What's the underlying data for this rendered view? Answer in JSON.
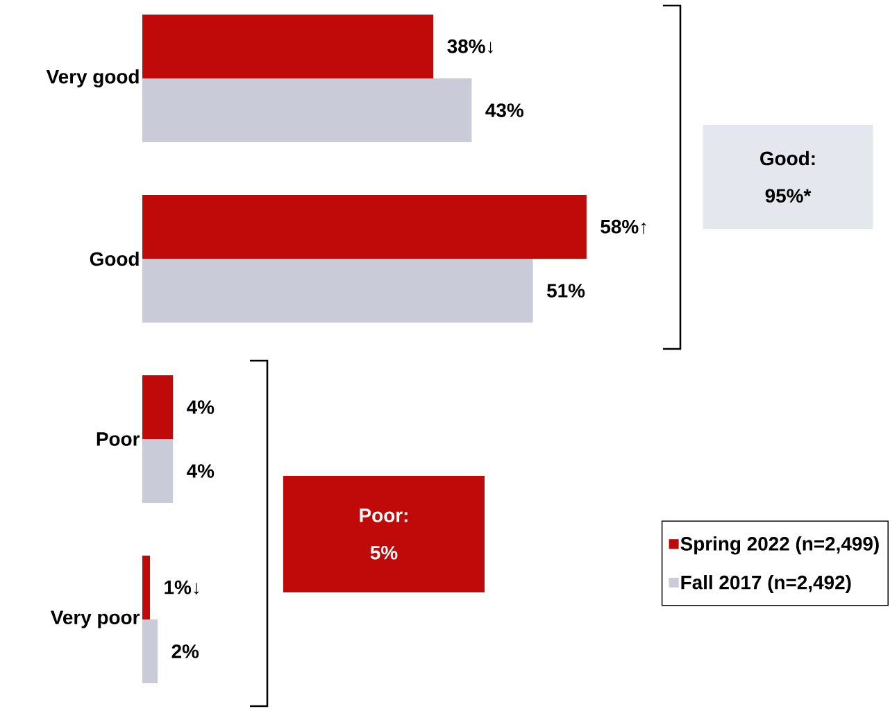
{
  "chart_data": {
    "type": "bar",
    "orientation": "horizontal",
    "categories": [
      "Very good",
      "Good",
      "Poor",
      "Very poor"
    ],
    "series": [
      {
        "name": "Spring 2022 (n=2,499)",
        "color": "#c00a0a",
        "values": [
          38,
          58,
          4,
          1
        ],
        "value_labels": [
          "38%↓",
          "58%↑",
          "4%",
          "1%↓"
        ]
      },
      {
        "name": "Fall 2017 (n=2,492)",
        "color": "#c9ccd8",
        "values": [
          43,
          51,
          4,
          2
        ],
        "value_labels": [
          "43%",
          "51%",
          "4%",
          "2%"
        ]
      }
    ],
    "annotations": [
      "Good: 95%*",
      "Poor: 5%"
    ],
    "legend": "bottom right"
  }
}
